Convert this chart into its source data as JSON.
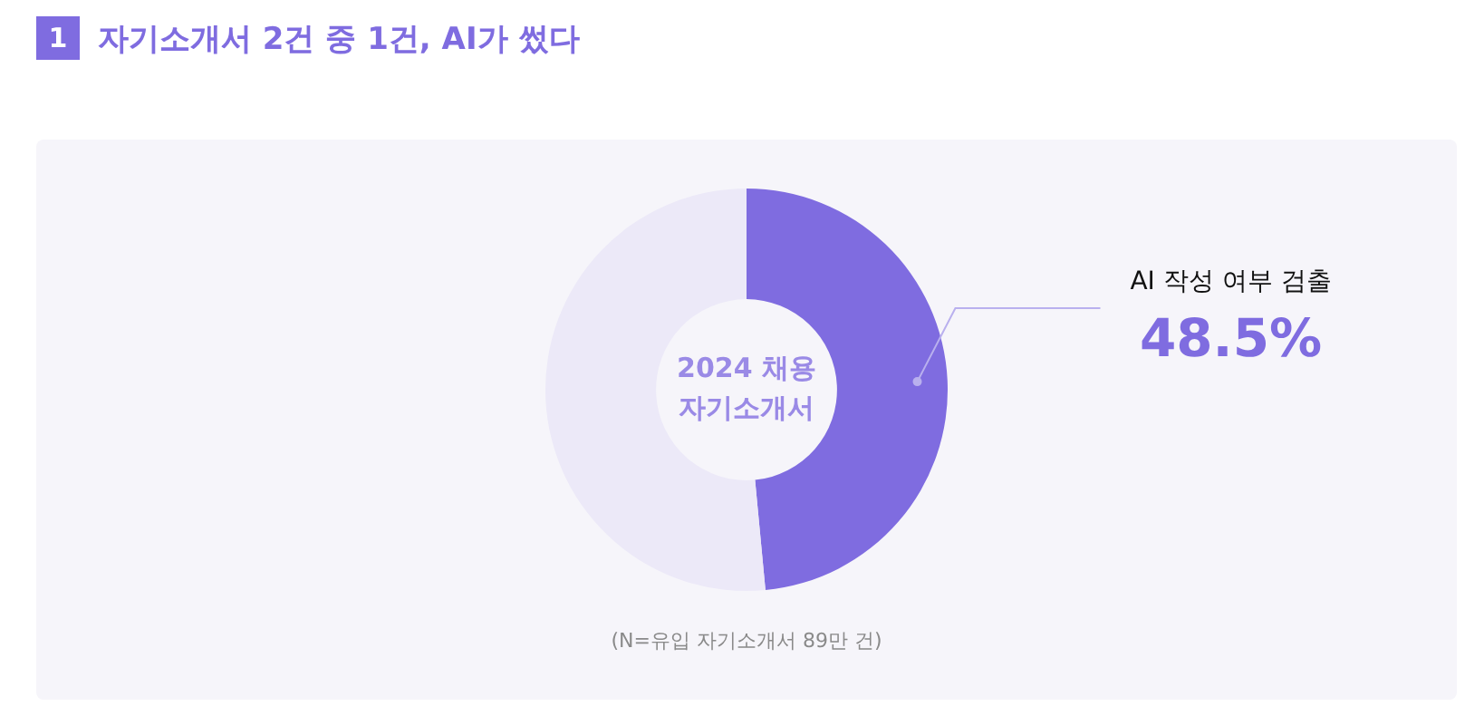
{
  "chart_data": {
    "type": "donut",
    "title": "자기소개서 2건 중 1건, AI가 썼다",
    "categories": [
      "AI 작성 여부 검출",
      null
    ],
    "values": [
      48.5,
      51.5
    ],
    "colors": [
      "#7f6ce0",
      "#ece9f8"
    ],
    "value_labels": [
      "48.5%",
      null
    ],
    "legend": false,
    "annotations": [
      "1",
      "2024 채용\n자기소개서",
      "(N=유입 자기소개서 89만 건)"
    ]
  }
}
